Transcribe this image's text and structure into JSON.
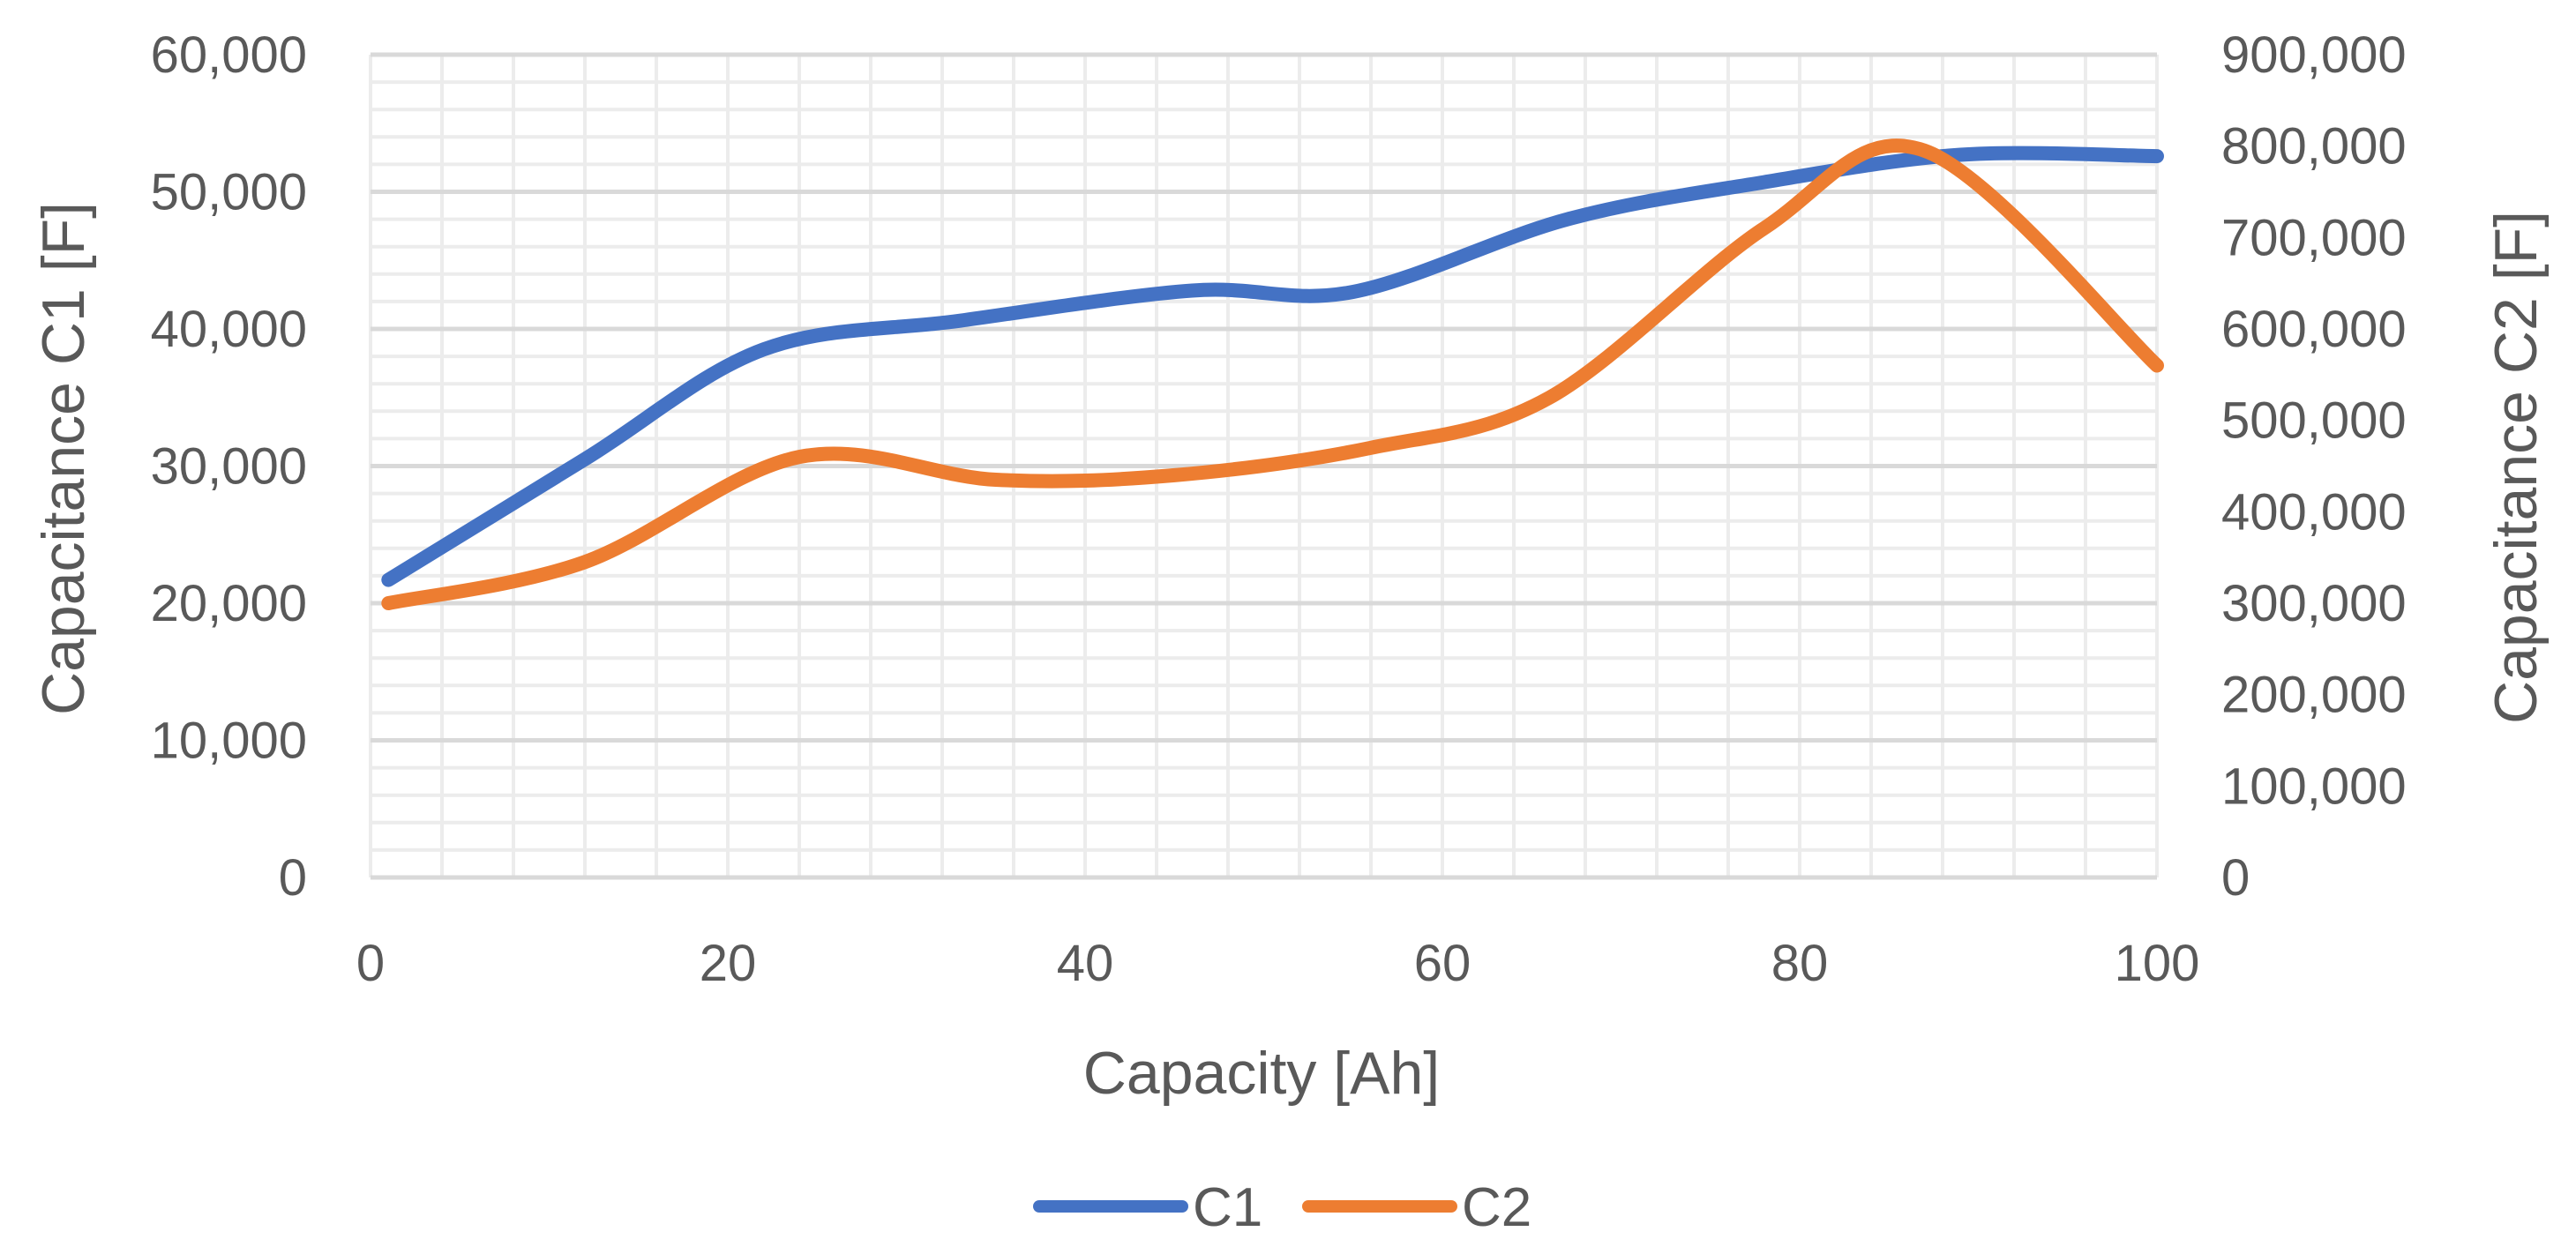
{
  "chart_data": {
    "type": "line",
    "title": "",
    "xlabel": "Capacity [Ah]",
    "ylabel": "Capacitance C1 [F]",
    "y2label": "Capacitance C2 [F]",
    "xlim": [
      0,
      100
    ],
    "ylim": [
      0,
      60000
    ],
    "y2lim": [
      0,
      900000
    ],
    "x_ticks": [
      "0",
      "20",
      "40",
      "60",
      "80",
      "100"
    ],
    "y_ticks": [
      "0",
      "10,000",
      "20,000",
      "30,000",
      "40,000",
      "50,000",
      "60,000"
    ],
    "y2_ticks": [
      "0",
      "100,000",
      "200,000",
      "300,000",
      "400,000",
      "500,000",
      "600,000",
      "700,000",
      "800,000",
      "900,000"
    ],
    "grid": true,
    "legend_position": "bottom",
    "series": [
      {
        "name": "C1",
        "axis": "left",
        "color": "#4472C4",
        "x": [
          1,
          12,
          22,
          33,
          46,
          55,
          67,
          78,
          89,
          100
        ],
        "values": [
          21700,
          30500,
          38500,
          40600,
          42800,
          42700,
          48000,
          50700,
          52700,
          52600
        ]
      },
      {
        "name": "C2",
        "axis": "right",
        "color": "#ED7D31",
        "x": [
          1,
          12,
          24,
          35,
          45,
          56,
          66,
          78,
          87,
          100
        ],
        "values": [
          300000,
          345000,
          460000,
          435000,
          440000,
          470000,
          525000,
          710000,
          795000,
          560000
        ]
      }
    ]
  }
}
